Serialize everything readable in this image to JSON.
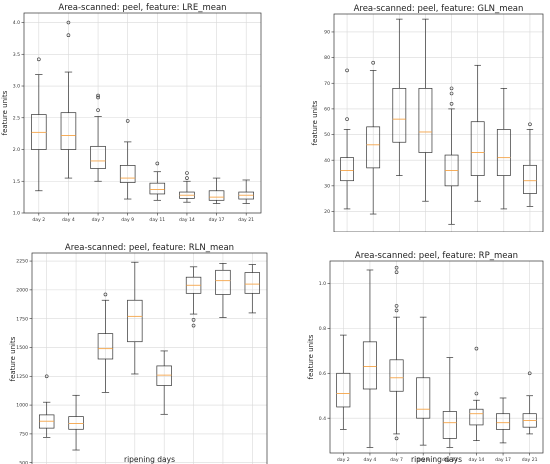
{
  "chart_data": [
    {
      "type": "boxplot",
      "title": "Area-scanned: peel, feature: LRE_mean",
      "xlabel": "",
      "ylabel": "feature units",
      "categories": [
        "day 2",
        "day 4",
        "day 7",
        "day 9",
        "day 11",
        "day 14",
        "day 17",
        "day 21"
      ],
      "ylim": [
        1.0,
        4.15
      ],
      "yticks": [
        "1.0",
        "1.5",
        "2.0",
        "2.5",
        "3.0",
        "3.5",
        "4.0"
      ],
      "ytick_values": [
        1.0,
        1.5,
        2.0,
        2.5,
        3.0,
        3.5,
        4.0
      ],
      "grid": true,
      "boxes": [
        {
          "whislo": 1.35,
          "q1": 2.0,
          "med": 2.27,
          "q3": 2.55,
          "whishi": 3.18,
          "fliers": [
            3.42
          ]
        },
        {
          "whislo": 1.55,
          "q1": 2.0,
          "med": 2.22,
          "q3": 2.58,
          "whishi": 3.22,
          "fliers": [
            3.8,
            4.0
          ]
        },
        {
          "whislo": 1.5,
          "q1": 1.7,
          "med": 1.82,
          "q3": 2.05,
          "whishi": 2.52,
          "fliers": [
            2.62,
            2.82,
            2.85
          ]
        },
        {
          "whislo": 1.22,
          "q1": 1.48,
          "med": 1.55,
          "q3": 1.75,
          "whishi": 2.12,
          "fliers": [
            2.45
          ]
        },
        {
          "whislo": 1.2,
          "q1": 1.3,
          "med": 1.37,
          "q3": 1.47,
          "whishi": 1.65,
          "fliers": [
            1.78
          ]
        },
        {
          "whislo": 1.17,
          "q1": 1.23,
          "med": 1.28,
          "q3": 1.33,
          "whishi": 1.5,
          "fliers": [
            1.55,
            1.63
          ]
        },
        {
          "whislo": 1.15,
          "q1": 1.2,
          "med": 1.25,
          "q3": 1.35,
          "whishi": 1.55,
          "fliers": []
        },
        {
          "whislo": 1.15,
          "q1": 1.22,
          "med": 1.28,
          "q3": 1.33,
          "whishi": 1.52,
          "fliers": []
        }
      ]
    },
    {
      "type": "boxplot",
      "title": "Area-scanned: peel, feature: GLN_mean",
      "xlabel": "",
      "ylabel": "feature units",
      "categories": [
        "day 2",
        "day 4",
        "day 7",
        "day 9",
        "day 11",
        "day 14",
        "day 17",
        "day 21"
      ],
      "ylim": [
        12,
        97
      ],
      "yticks": [
        "20",
        "30",
        "40",
        "50",
        "60",
        "70",
        "80",
        "90"
      ],
      "ytick_values": [
        20,
        30,
        40,
        50,
        60,
        70,
        80,
        90
      ],
      "grid": true,
      "boxes": [
        {
          "whislo": 21,
          "q1": 32,
          "med": 36,
          "q3": 41,
          "whishi": 52,
          "fliers": [
            56,
            75
          ]
        },
        {
          "whislo": 19,
          "q1": 37,
          "med": 46,
          "q3": 53,
          "whishi": 75,
          "fliers": [
            78
          ]
        },
        {
          "whislo": 34,
          "q1": 47,
          "med": 56,
          "q3": 68,
          "whishi": 95,
          "fliers": []
        },
        {
          "whislo": 24,
          "q1": 43,
          "med": 51,
          "q3": 68,
          "whishi": 95,
          "fliers": []
        },
        {
          "whislo": 15,
          "q1": 30,
          "med": 36,
          "q3": 42,
          "whishi": 60,
          "fliers": [
            62,
            66,
            68
          ]
        },
        {
          "whislo": 24,
          "q1": 34,
          "med": 43,
          "q3": 55,
          "whishi": 77,
          "fliers": []
        },
        {
          "whislo": 21,
          "q1": 34,
          "med": 41,
          "q3": 52,
          "whishi": 68,
          "fliers": []
        },
        {
          "whislo": 22,
          "q1": 27,
          "med": 32,
          "q3": 38,
          "whishi": 52,
          "fliers": [
            54
          ]
        }
      ]
    },
    {
      "type": "boxplot",
      "title": "Area-scanned: peel, feature: RLN_mean",
      "xlabel": "ripening days",
      "ylabel": "feature units",
      "categories": [
        "day 2",
        "day 4",
        "day 7",
        "day 9",
        "day 11",
        "day 14",
        "day 17",
        "day 21"
      ],
      "ylim": [
        480,
        2320
      ],
      "yticks": [
        "500",
        "750",
        "1000",
        "1250",
        "1500",
        "1750",
        "2000",
        "2250"
      ],
      "ytick_values": [
        500,
        750,
        1000,
        1250,
        1500,
        1750,
        2000,
        2250
      ],
      "grid": true,
      "boxes": [
        {
          "whislo": 720,
          "q1": 800,
          "med": 860,
          "q3": 915,
          "whishi": 1025,
          "fliers": [
            1250
          ]
        },
        {
          "whislo": 610,
          "q1": 790,
          "med": 840,
          "q3": 900,
          "whishi": 1085,
          "fliers": []
        },
        {
          "whislo": 1110,
          "q1": 1400,
          "med": 1490,
          "q3": 1620,
          "whishi": 1910,
          "fliers": [
            1960
          ]
        },
        {
          "whislo": 1270,
          "q1": 1550,
          "med": 1770,
          "q3": 1910,
          "whishi": 2240,
          "fliers": []
        },
        {
          "whislo": 920,
          "q1": 1170,
          "med": 1260,
          "q3": 1340,
          "whishi": 1470,
          "fliers": []
        },
        {
          "whislo": 1790,
          "q1": 1970,
          "med": 2040,
          "q3": 2110,
          "whishi": 2200,
          "fliers": [
            1690,
            1740
          ]
        },
        {
          "whislo": 1760,
          "q1": 1960,
          "med": 2080,
          "q3": 2170,
          "whishi": 2230,
          "fliers": []
        },
        {
          "whislo": 1800,
          "q1": 1970,
          "med": 2050,
          "q3": 2150,
          "whishi": 2220,
          "fliers": []
        }
      ]
    },
    {
      "type": "boxplot",
      "title": "Area-scanned: peel, feature: RP_mean",
      "xlabel": "ripening days",
      "ylabel": "feature units",
      "categories": [
        "day 2",
        "day 4",
        "day 7",
        "day 9",
        "day 11",
        "day 14",
        "day 17",
        "day 21"
      ],
      "ylim": [
        0.245,
        1.1
      ],
      "yticks": [
        "0.4",
        "0.6",
        "0.8",
        "1.0"
      ],
      "ytick_values": [
        0.4,
        0.6,
        0.8,
        1.0
      ],
      "grid": true,
      "boxes": [
        {
          "whislo": 0.35,
          "q1": 0.45,
          "med": 0.51,
          "q3": 0.6,
          "whishi": 0.77,
          "fliers": []
        },
        {
          "whislo": 0.27,
          "q1": 0.53,
          "med": 0.63,
          "q3": 0.74,
          "whishi": 1.06,
          "fliers": []
        },
        {
          "whislo": 0.33,
          "q1": 0.52,
          "med": 0.58,
          "q3": 0.66,
          "whishi": 0.85,
          "fliers": [
            0.31,
            0.88,
            0.9,
            1.05,
            1.07
          ]
        },
        {
          "whislo": 0.28,
          "q1": 0.4,
          "med": 0.44,
          "q3": 0.58,
          "whishi": 0.85,
          "fliers": []
        },
        {
          "whislo": 0.27,
          "q1": 0.31,
          "med": 0.38,
          "q3": 0.43,
          "whishi": 0.67,
          "fliers": []
        },
        {
          "whislo": 0.3,
          "q1": 0.37,
          "med": 0.42,
          "q3": 0.44,
          "whishi": 0.48,
          "fliers": [
            0.51,
            0.71
          ]
        },
        {
          "whislo": 0.29,
          "q1": 0.35,
          "med": 0.38,
          "q3": 0.42,
          "whishi": 0.49,
          "fliers": []
        },
        {
          "whislo": 0.33,
          "q1": 0.36,
          "med": 0.39,
          "q3": 0.42,
          "whishi": 0.5,
          "fliers": [
            0.6
          ]
        }
      ]
    }
  ],
  "colors": {
    "box": "#333333",
    "median": "#f5a54a",
    "grid": "#d9d9d9",
    "axis": "#333333"
  }
}
